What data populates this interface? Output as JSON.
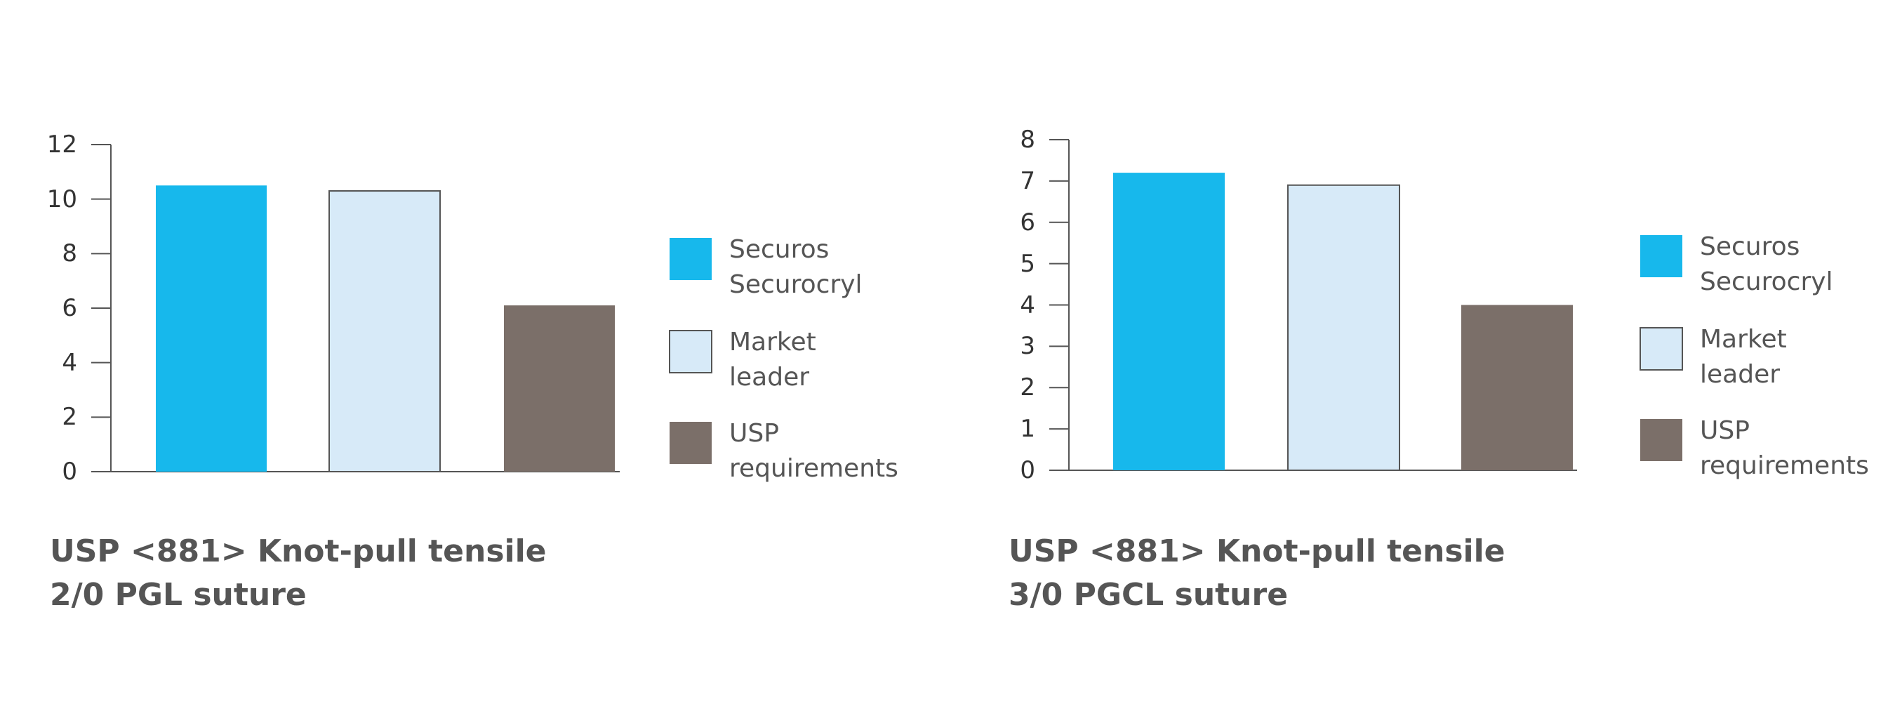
{
  "chart_data": [
    {
      "type": "bar",
      "title": "USP <881> Knot-pull tensile 2/0 PGL suture",
      "categories": [
        "Securos Securocryl",
        "Market leader",
        "USP requirements"
      ],
      "values": [
        10.5,
        10.3,
        6.1
      ],
      "colors": [
        "#17b8ec",
        "#d7eaf8",
        "#7b6f69"
      ],
      "ylim": [
        0,
        12
      ],
      "yticks": [
        0,
        2,
        4,
        6,
        8,
        10,
        12
      ]
    },
    {
      "type": "bar",
      "title": "USP <881> Knot-pull tensile 3/0 PGCL suture",
      "categories": [
        "Securos Securocryl",
        "Market leader",
        "USP requirements"
      ],
      "values": [
        7.2,
        6.9,
        4.0
      ],
      "colors": [
        "#17b8ec",
        "#d7eaf8",
        "#7b6f69"
      ],
      "ylim": [
        0,
        8
      ],
      "yticks": [
        0,
        1,
        2,
        3,
        4,
        5,
        6,
        7,
        8
      ]
    }
  ]
}
